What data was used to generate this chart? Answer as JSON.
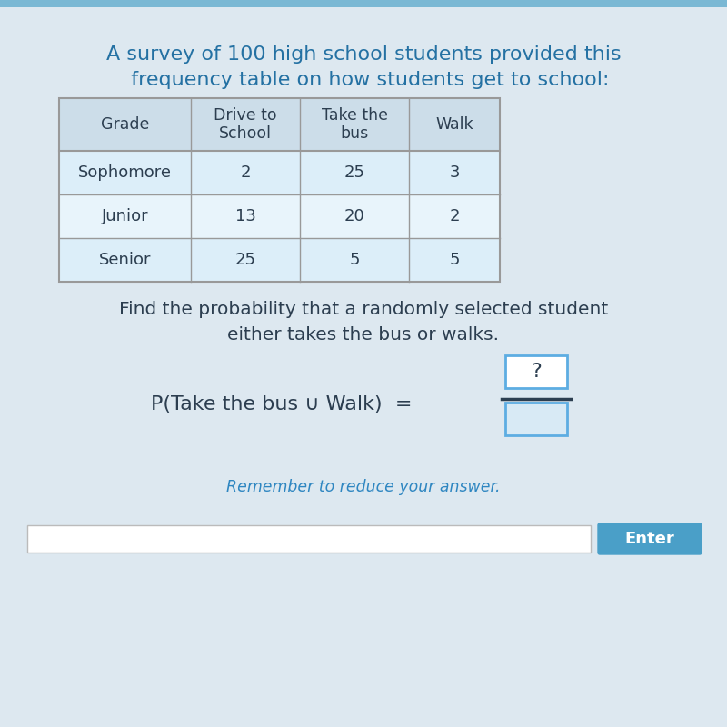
{
  "title_line1": "A survey of 100 high school students provided this",
  "title_line2": "  frequency table on how students get to school:",
  "col_headers": [
    "Grade",
    "Drive to\nSchool",
    "Take the\nbus",
    "Walk"
  ],
  "rows": [
    [
      "Sophomore",
      "2",
      "25",
      "3"
    ],
    [
      "Junior",
      "13",
      "20",
      "2"
    ],
    [
      "Senior",
      "25",
      "5",
      "5"
    ]
  ],
  "question_line1": "Find the probability that a randomly selected student",
  "question_line2": "either takes the bus or walks.",
  "prob_label": "P(Take the bus ∪ Walk)  =",
  "numerator_text": "?",
  "remember_text": "Remember to reduce your answer.",
  "enter_text": "Enter",
  "bg_color": "#cfe0ee",
  "card_bg": "#e2eff8",
  "table_header_bg": "#ccdde9",
  "title_color": "#2471a3",
  "question_color": "#2c3e50",
  "remember_color": "#2e86c1",
  "enter_bg": "#4a9fc8",
  "enter_text_color": "#ffffff",
  "box_border_color": "#5dade2",
  "table_border_color": "#999999",
  "input_border_color": "#bbbbbb"
}
